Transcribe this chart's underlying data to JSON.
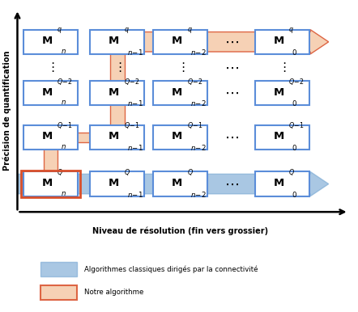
{
  "fig_width": 4.42,
  "fig_height": 3.86,
  "dpi": 100,
  "bg_color": "#ffffff",
  "box_color": "#ffffff",
  "box_edge_color": "#5b8dd9",
  "box_edge_width": 1.5,
  "blue_arrow_color": "#7baad4",
  "blue_arrow_alpha": 0.65,
  "red_fill_color": "#f5c9a8",
  "red_border_color": "#d94f2a",
  "rows_sup": [
    "q",
    "Q-2",
    "Q-1",
    "Q"
  ],
  "cols_sub": [
    "n",
    "n-1",
    "n-2",
    "0"
  ],
  "xlabel": "Niveau de résolution (fin vers grossier)",
  "ylabel": "Précision de quantification",
  "legend_blue_label": "Algorithmes classiques dirigés par la connectivité",
  "legend_red_label": "Notre algorithme"
}
